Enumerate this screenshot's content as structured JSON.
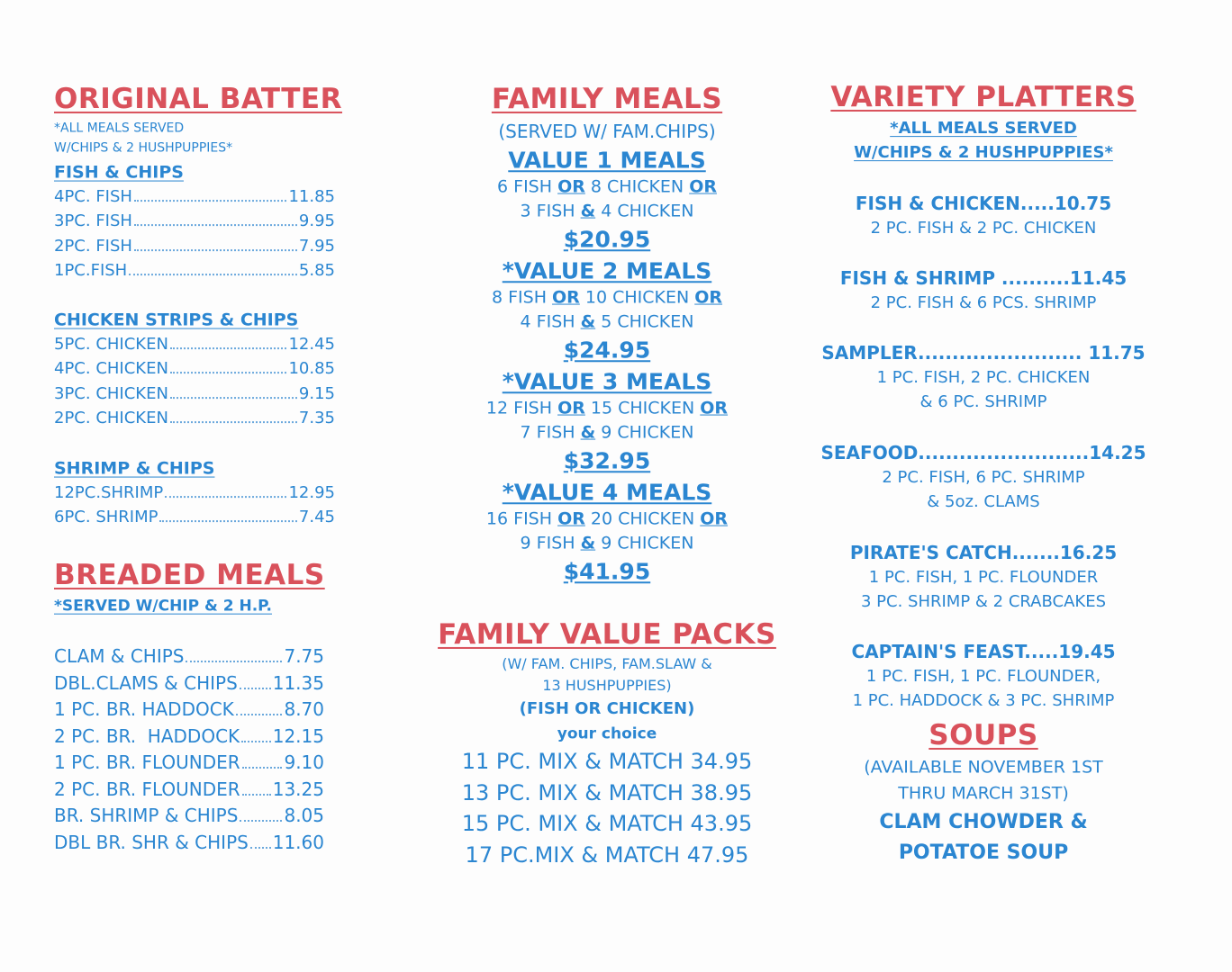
{
  "colors": {
    "heading_red": "#d9515b",
    "text_blue": "#2b86d1"
  },
  "original_batter": {
    "title": "ORIGINAL BATTER",
    "note": [
      "*ALL MEALS SERVED",
      "W/CHIPS & 2 HUSHPUPPIES*"
    ],
    "groups": [
      {
        "heading": "FISH & CHIPS",
        "items": [
          {
            "name": "4PC. FISH",
            "price": "11.85"
          },
          {
            "name": "3PC. FISH",
            "price": "9.95"
          },
          {
            "name": "2PC. FISH",
            "price": "7.95"
          },
          {
            "name": "1PC.FISH",
            "price": "5.85"
          }
        ]
      },
      {
        "heading": "CHICKEN STRIPS & CHIPS",
        "items": [
          {
            "name": "5PC. CHICKEN",
            "price": "12.45"
          },
          {
            "name": "4PC. CHICKEN",
            "price": "10.85"
          },
          {
            "name": "3PC. CHICKEN",
            "price": "9.15"
          },
          {
            "name": "2PC. CHICKEN",
            "price": "7.35"
          }
        ]
      },
      {
        "heading": "SHRIMP & CHIPS",
        "items": [
          {
            "name": "12PC.SHRIMP",
            "price": "12.95"
          },
          {
            "name": "6PC. SHRIMP",
            "price": "7.45"
          }
        ]
      }
    ]
  },
  "breaded_meals": {
    "title": "BREADED MEALS",
    "note": "*SERVED W/CHIP & 2 H.P.",
    "items": [
      {
        "name": "CLAM & CHIPS",
        "price": "7.75"
      },
      {
        "name": "DBL.CLAMS & CHIPS",
        "price": "11.35"
      },
      {
        "name": "1 PC. BR. HADDOCK",
        "price": "8.70"
      },
      {
        "name": "2 PC. BR.  HADDOCK",
        "price": "12.15"
      },
      {
        "name": "1 PC. BR. FLOUNDER",
        "price": "9.10"
      },
      {
        "name": "2 PC. BR. FLOUNDER",
        "price": "13.25"
      },
      {
        "name": "BR. SHRIMP & CHIPS",
        "price": "8.05"
      },
      {
        "name": "DBL BR. SHR & CHIPS",
        "price": "11.60"
      }
    ]
  },
  "family_meals": {
    "title": "FAMILY MEALS",
    "subtitle": "(SERVED W/ FAM.CHIPS)",
    "values": [
      {
        "heading": "VALUE 1 MEALS",
        "lines": [
          "6 FISH OR 8 CHICKEN OR",
          "3 FISH & 4 CHICKEN"
        ],
        "price": "$20.95"
      },
      {
        "heading": "*VALUE 2 MEALS",
        "lines": [
          "8 FISH OR 10 CHICKEN OR",
          "4 FISH & 5 CHICKEN"
        ],
        "price": "$24.95"
      },
      {
        "heading": "*VALUE 3 MEALS",
        "lines": [
          "12 FISH OR 15 CHICKEN OR",
          "7 FISH & 9 CHICKEN"
        ],
        "price": "$32.95"
      },
      {
        "heading": "*VALUE 4 MEALS",
        "lines": [
          "16 FISH OR 20 CHICKEN OR",
          "9 FISH & 9 CHICKEN"
        ],
        "price": "$41.95"
      }
    ]
  },
  "family_value_packs": {
    "title": "FAMILY VALUE PACKS",
    "note": [
      "(W/ FAM. CHIPS, FAM.SLAW &",
      "13 HUSHPUPPIES)"
    ],
    "choice": "(FISH OR CHICKEN)",
    "choice_sub": "your choice",
    "items": [
      "11 PC. MIX & MATCH 34.95",
      "13 PC. MIX & MATCH 38.95",
      "15 PC. MIX & MATCH 43.95",
      "17 PC.MIX & MATCH 47.95"
    ]
  },
  "variety_platters": {
    "title": "VARIETY PLATTERS",
    "note": [
      "*ALL MEALS SERVED",
      "W/CHIPS & 2 HUSHPUPPIES*"
    ],
    "items": [
      {
        "name": "FISH & CHICKEN.....10.75",
        "desc": [
          "2 PC. FISH & 2 PC. CHICKEN"
        ]
      },
      {
        "name": "FISH & SHRIMP  ..........11.45",
        "desc": [
          "2 PC. FISH & 6 PCS. SHRIMP"
        ]
      },
      {
        "name": "SAMPLER........................ 11.75",
        "desc": [
          "1 PC. FISH, 2 PC. CHICKEN",
          "& 6 PC. SHRIMP"
        ]
      },
      {
        "name": "SEAFOOD.........................14.25",
        "desc": [
          "2 PC. FISH, 6 PC. SHRIMP",
          "& 5oz. CLAMS"
        ]
      },
      {
        "name": "PIRATE'S CATCH.......16.25",
        "desc": [
          "1 PC. FISH, 1 PC. FLOUNDER",
          "3 PC. SHRIMP & 2 CRABCAKES"
        ]
      },
      {
        "name": "CAPTAIN'S FEAST.....19.45",
        "desc": [
          "1 PC. FISH, 1 PC. FLOUNDER,",
          "1 PC. HADDOCK & 3 PC. SHRIMP"
        ]
      }
    ]
  },
  "soups": {
    "title": "SOUPS",
    "note": [
      "(AVAILABLE NOVEMBER 1ST",
      "THRU MARCH 31ST)"
    ],
    "items": [
      "CLAM CHOWDER &",
      "POTATOE SOUP"
    ]
  }
}
